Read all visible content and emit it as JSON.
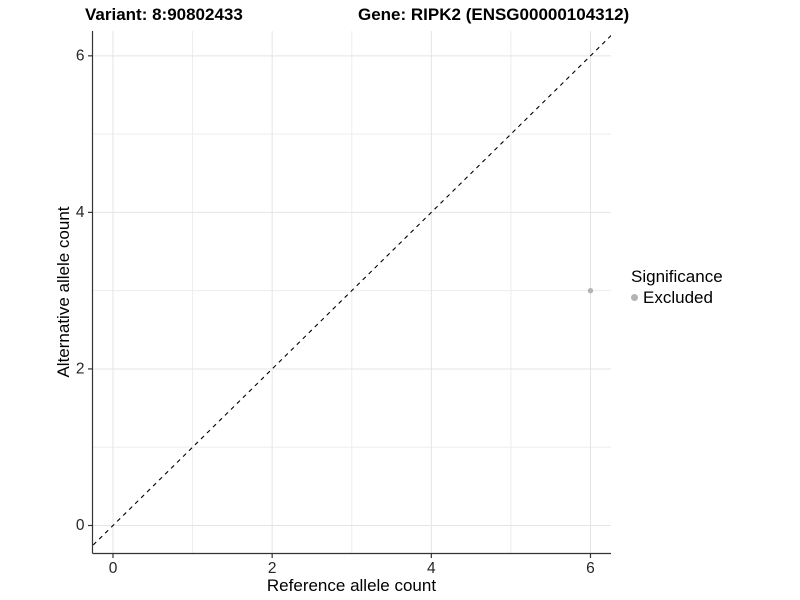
{
  "chart_data": {
    "type": "scatter",
    "title_left": "Variant: 8:90802433",
    "title_right": "Gene: RIPK2 (ENSG00000104312)",
    "xlabel": "Reference allele count",
    "ylabel": "Alternative allele count",
    "x_ticks": [
      0,
      2,
      4,
      6
    ],
    "y_ticks": [
      0,
      2,
      4,
      6
    ],
    "minor_gridlines": [
      1,
      3,
      5
    ],
    "xlim": [
      -0.3,
      6.3
    ],
    "ylim": [
      -0.35,
      6.35
    ],
    "grid": "on",
    "series": [
      {
        "name": "Excluded",
        "color": "#b3b3b3",
        "marker": "circle",
        "points": [
          [
            6,
            3
          ]
        ]
      }
    ],
    "reference_line": {
      "kind": "identity y=x",
      "style": "dashed",
      "color": "#000000"
    },
    "legend": {
      "title": "Significance",
      "position": "right",
      "items": [
        {
          "label": "Excluded",
          "color": "#b3b3b3",
          "marker": "circle"
        }
      ]
    }
  },
  "colors": {
    "background": "#ffffff",
    "grid_major": "#e4e4e4",
    "grid_minor": "#ededed",
    "axis_line": "#333333",
    "tick_mark": "#333333",
    "tick_label": "#262626"
  }
}
